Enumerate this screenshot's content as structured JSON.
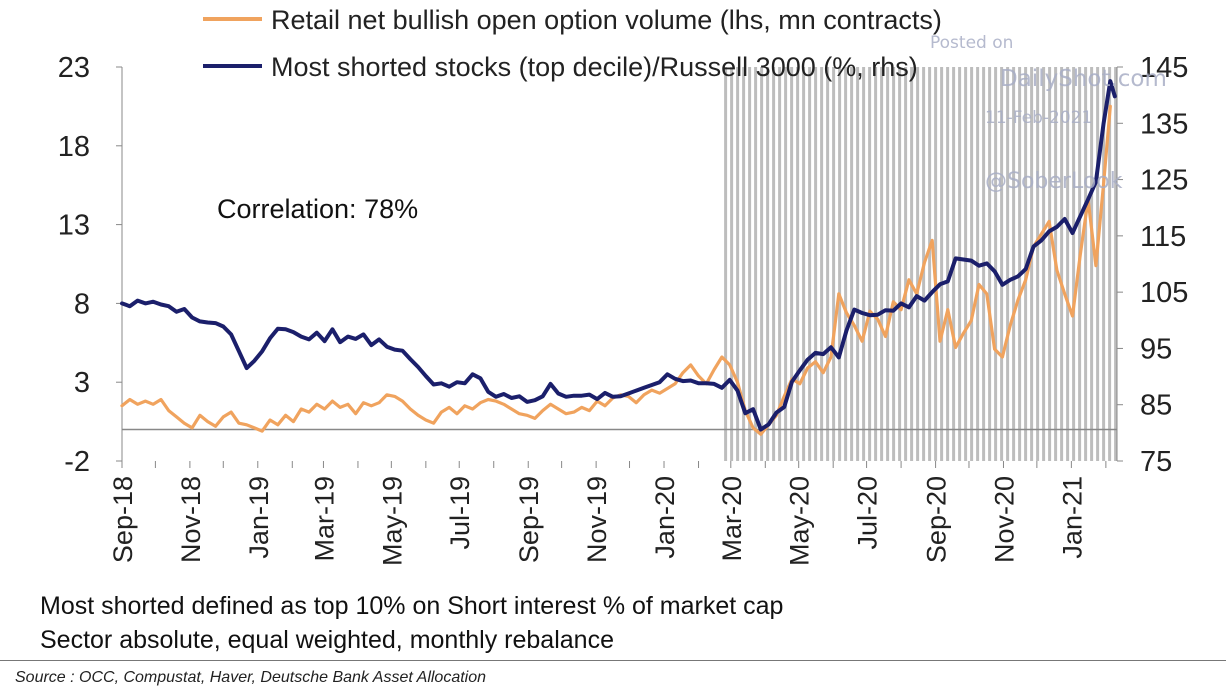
{
  "chart_data": {
    "type": "line",
    "annotation": "Correlation: 78%",
    "recession_shading": {
      "from": "2020-02-24",
      "to": "2021-02-11",
      "color": "#bdbdbd"
    },
    "x_tick_labels": [
      "Sep-18",
      "Nov-18",
      "Jan-19",
      "Mar-19",
      "May-19",
      "Jul-19",
      "Sep-19",
      "Nov-19",
      "Jan-20",
      "Mar-20",
      "May-20",
      "Jul-20",
      "Sep-20",
      "Nov-20",
      "Jan-21"
    ],
    "x_range": [
      "2018-09-01",
      "2021-02-11"
    ],
    "y_left": {
      "label": "lhs",
      "ticks": [
        "23",
        "18",
        "13",
        "8",
        "3",
        "-2"
      ],
      "range": [
        -2,
        23
      ]
    },
    "y_right": {
      "label": "rhs",
      "ticks": [
        "145",
        "135",
        "125",
        "115",
        "105",
        "95",
        "85",
        "75"
      ],
      "range": [
        75,
        145
      ]
    },
    "series": [
      {
        "name": "Retail net bullish open option volume (lhs, mn contracts)",
        "axis": "left",
        "color": "#f0a35e",
        "points": [
          [
            "2018-09-01",
            1.5
          ],
          [
            "2018-09-08",
            1.9
          ],
          [
            "2018-09-15",
            1.6
          ],
          [
            "2018-09-22",
            1.8
          ],
          [
            "2018-09-29",
            1.6
          ],
          [
            "2018-10-06",
            1.9
          ],
          [
            "2018-10-13",
            1.2
          ],
          [
            "2018-10-20",
            0.8
          ],
          [
            "2018-10-27",
            0.4
          ],
          [
            "2018-11-03",
            0.1
          ],
          [
            "2018-11-10",
            0.9
          ],
          [
            "2018-11-17",
            0.5
          ],
          [
            "2018-11-24",
            0.2
          ],
          [
            "2018-12-01",
            0.8
          ],
          [
            "2018-12-08",
            1.1
          ],
          [
            "2018-12-15",
            0.4
          ],
          [
            "2018-12-22",
            0.3
          ],
          [
            "2018-12-29",
            0.1
          ],
          [
            "2019-01-05",
            -0.1
          ],
          [
            "2019-01-12",
            0.6
          ],
          [
            "2019-01-19",
            0.3
          ],
          [
            "2019-01-26",
            0.9
          ],
          [
            "2019-02-02",
            0.5
          ],
          [
            "2019-02-09",
            1.3
          ],
          [
            "2019-02-16",
            1.1
          ],
          [
            "2019-02-23",
            1.6
          ],
          [
            "2019-03-02",
            1.3
          ],
          [
            "2019-03-09",
            1.8
          ],
          [
            "2019-03-16",
            1.4
          ],
          [
            "2019-03-23",
            1.6
          ],
          [
            "2019-03-30",
            1.0
          ],
          [
            "2019-04-06",
            1.7
          ],
          [
            "2019-04-13",
            1.5
          ],
          [
            "2019-04-20",
            1.7
          ],
          [
            "2019-04-27",
            2.2
          ],
          [
            "2019-05-04",
            2.1
          ],
          [
            "2019-05-11",
            1.8
          ],
          [
            "2019-05-18",
            1.3
          ],
          [
            "2019-05-25",
            0.9
          ],
          [
            "2019-06-01",
            0.6
          ],
          [
            "2019-06-08",
            0.4
          ],
          [
            "2019-06-15",
            1.1
          ],
          [
            "2019-06-22",
            1.4
          ],
          [
            "2019-06-29",
            1.0
          ],
          [
            "2019-07-06",
            1.5
          ],
          [
            "2019-07-13",
            1.3
          ],
          [
            "2019-07-20",
            1.7
          ],
          [
            "2019-07-27",
            1.9
          ],
          [
            "2019-08-03",
            1.8
          ],
          [
            "2019-08-10",
            1.6
          ],
          [
            "2019-08-17",
            1.3
          ],
          [
            "2019-08-24",
            1.0
          ],
          [
            "2019-08-31",
            0.9
          ],
          [
            "2019-09-07",
            0.7
          ],
          [
            "2019-09-14",
            1.2
          ],
          [
            "2019-09-21",
            1.6
          ],
          [
            "2019-09-28",
            1.3
          ],
          [
            "2019-10-05",
            1.0
          ],
          [
            "2019-10-12",
            1.1
          ],
          [
            "2019-10-19",
            1.4
          ],
          [
            "2019-10-26",
            1.2
          ],
          [
            "2019-11-02",
            1.8
          ],
          [
            "2019-11-09",
            1.5
          ],
          [
            "2019-11-16",
            2.0
          ],
          [
            "2019-11-23",
            2.2
          ],
          [
            "2019-11-30",
            2.1
          ],
          [
            "2019-12-07",
            1.7
          ],
          [
            "2019-12-14",
            2.2
          ],
          [
            "2019-12-21",
            2.5
          ],
          [
            "2019-12-28",
            2.3
          ],
          [
            "2020-01-04",
            2.6
          ],
          [
            "2020-01-11",
            2.9
          ],
          [
            "2020-01-18",
            3.6
          ],
          [
            "2020-01-25",
            4.1
          ],
          [
            "2020-02-01",
            3.4
          ],
          [
            "2020-02-08",
            2.9
          ],
          [
            "2020-02-15",
            3.8
          ],
          [
            "2020-02-22",
            4.6
          ],
          [
            "2020-02-29",
            4.1
          ],
          [
            "2020-03-07",
            3.0
          ],
          [
            "2020-03-14",
            1.2
          ],
          [
            "2020-03-21",
            0.1
          ],
          [
            "2020-03-28",
            -0.3
          ],
          [
            "2020-04-04",
            0.3
          ],
          [
            "2020-04-11",
            0.9
          ],
          [
            "2020-04-18",
            2.1
          ],
          [
            "2020-04-25",
            3.2
          ],
          [
            "2020-05-02",
            2.9
          ],
          [
            "2020-05-09",
            3.9
          ],
          [
            "2020-05-16",
            4.3
          ],
          [
            "2020-05-23",
            3.6
          ],
          [
            "2020-05-30",
            4.6
          ],
          [
            "2020-06-06",
            8.6
          ],
          [
            "2020-06-13",
            7.4
          ],
          [
            "2020-06-20",
            6.6
          ],
          [
            "2020-06-27",
            5.6
          ],
          [
            "2020-07-04",
            7.5
          ],
          [
            "2020-07-11",
            7.0
          ],
          [
            "2020-07-18",
            5.9
          ],
          [
            "2020-07-25",
            8.1
          ],
          [
            "2020-08-01",
            7.6
          ],
          [
            "2020-08-08",
            9.5
          ],
          [
            "2020-08-15",
            8.6
          ],
          [
            "2020-08-22",
            10.6
          ],
          [
            "2020-08-29",
            12.0
          ],
          [
            "2020-09-05",
            5.6
          ],
          [
            "2020-09-12",
            7.6
          ],
          [
            "2020-09-19",
            5.2
          ],
          [
            "2020-09-26",
            6.1
          ],
          [
            "2020-10-03",
            6.9
          ],
          [
            "2020-10-10",
            9.2
          ],
          [
            "2020-10-17",
            8.6
          ],
          [
            "2020-10-24",
            5.1
          ],
          [
            "2020-10-31",
            4.6
          ],
          [
            "2020-11-07",
            6.6
          ],
          [
            "2020-11-14",
            8.2
          ],
          [
            "2020-11-21",
            9.5
          ],
          [
            "2020-11-28",
            11.6
          ],
          [
            "2020-12-05",
            12.4
          ],
          [
            "2020-12-12",
            13.2
          ],
          [
            "2020-12-19",
            10.1
          ],
          [
            "2020-12-26",
            8.6
          ],
          [
            "2021-01-02",
            7.2
          ],
          [
            "2021-01-09",
            11.1
          ],
          [
            "2021-01-16",
            14.6
          ],
          [
            "2021-01-23",
            10.4
          ],
          [
            "2021-01-30",
            15.6
          ],
          [
            "2021-02-05",
            20.5
          ]
        ]
      },
      {
        "name": "Most shorted stocks (top decile)/Russell 3000 (%, rhs)",
        "axis": "right",
        "color": "#1b1f6b",
        "points": [
          [
            "2018-09-01",
            103
          ],
          [
            "2018-09-08",
            102.5
          ],
          [
            "2018-09-15",
            103.5
          ],
          [
            "2018-09-22",
            103
          ],
          [
            "2018-09-29",
            103.3
          ],
          [
            "2018-10-06",
            102.8
          ],
          [
            "2018-10-13",
            102.5
          ],
          [
            "2018-10-20",
            101.5
          ],
          [
            "2018-10-27",
            102
          ],
          [
            "2018-11-03",
            100.5
          ],
          [
            "2018-11-10",
            99.8
          ],
          [
            "2018-11-17",
            99.6
          ],
          [
            "2018-11-24",
            99.5
          ],
          [
            "2018-12-01",
            98.9
          ],
          [
            "2018-12-08",
            97.5
          ],
          [
            "2018-12-15",
            94.5
          ],
          [
            "2018-12-22",
            91.5
          ],
          [
            "2018-12-29",
            92.8
          ],
          [
            "2019-01-05",
            94.5
          ],
          [
            "2019-01-12",
            96.8
          ],
          [
            "2019-01-19",
            98.5
          ],
          [
            "2019-01-26",
            98.4
          ],
          [
            "2019-02-02",
            97.9
          ],
          [
            "2019-02-09",
            97.1
          ],
          [
            "2019-02-16",
            96.6
          ],
          [
            "2019-02-23",
            97.8
          ],
          [
            "2019-03-02",
            96.3
          ],
          [
            "2019-03-09",
            98.4
          ],
          [
            "2019-03-16",
            96.1
          ],
          [
            "2019-03-23",
            97.1
          ],
          [
            "2019-03-30",
            96.7
          ],
          [
            "2019-04-06",
            97.5
          ],
          [
            "2019-04-13",
            95.6
          ],
          [
            "2019-04-20",
            96.6
          ],
          [
            "2019-04-27",
            95.3
          ],
          [
            "2019-05-04",
            94.8
          ],
          [
            "2019-05-11",
            94.6
          ],
          [
            "2019-05-18",
            93.1
          ],
          [
            "2019-05-25",
            91.7
          ],
          [
            "2019-06-01",
            90.1
          ],
          [
            "2019-06-08",
            88.6
          ],
          [
            "2019-06-15",
            88.8
          ],
          [
            "2019-06-22",
            88.2
          ],
          [
            "2019-06-29",
            89.0
          ],
          [
            "2019-07-06",
            88.8
          ],
          [
            "2019-07-13",
            90.4
          ],
          [
            "2019-07-20",
            89.7
          ],
          [
            "2019-07-27",
            87.3
          ],
          [
            "2019-08-03",
            86.4
          ],
          [
            "2019-08-10",
            86.9
          ],
          [
            "2019-08-17",
            86.2
          ],
          [
            "2019-08-24",
            86.5
          ],
          [
            "2019-08-31",
            85.5
          ],
          [
            "2019-09-07",
            85.8
          ],
          [
            "2019-09-14",
            86.5
          ],
          [
            "2019-09-21",
            88.7
          ],
          [
            "2019-09-28",
            87.0
          ],
          [
            "2019-10-05",
            86.4
          ],
          [
            "2019-10-12",
            86.6
          ],
          [
            "2019-10-19",
            86.6
          ],
          [
            "2019-10-26",
            86.8
          ],
          [
            "2019-11-02",
            86.0
          ],
          [
            "2019-11-09",
            87.1
          ],
          [
            "2019-11-16",
            86.4
          ],
          [
            "2019-11-23",
            86.5
          ],
          [
            "2019-11-30",
            87.0
          ],
          [
            "2019-12-07",
            87.5
          ],
          [
            "2019-12-14",
            88.0
          ],
          [
            "2019-12-21",
            88.5
          ],
          [
            "2019-12-28",
            89.0
          ],
          [
            "2020-01-04",
            90.4
          ],
          [
            "2020-01-11",
            89.6
          ],
          [
            "2020-01-18",
            89.2
          ],
          [
            "2020-01-25",
            89.3
          ],
          [
            "2020-02-01",
            88.8
          ],
          [
            "2020-02-08",
            88.8
          ],
          [
            "2020-02-15",
            88.7
          ],
          [
            "2020-02-22",
            88.0
          ],
          [
            "2020-02-29",
            89.4
          ],
          [
            "2020-03-07",
            87.5
          ],
          [
            "2020-03-14",
            83.5
          ],
          [
            "2020-03-21",
            84.2
          ],
          [
            "2020-03-28",
            80.6
          ],
          [
            "2020-04-04",
            81.5
          ],
          [
            "2020-04-11",
            83.6
          ],
          [
            "2020-04-18",
            84.6
          ],
          [
            "2020-04-25",
            89.1
          ],
          [
            "2020-05-02",
            91.1
          ],
          [
            "2020-05-09",
            93.0
          ],
          [
            "2020-05-16",
            94.2
          ],
          [
            "2020-05-23",
            94.0
          ],
          [
            "2020-05-30",
            95.2
          ],
          [
            "2020-06-06",
            93.4
          ],
          [
            "2020-06-13",
            98.2
          ],
          [
            "2020-06-20",
            101.9
          ],
          [
            "2020-06-27",
            101.3
          ],
          [
            "2020-07-04",
            100.9
          ],
          [
            "2020-07-11",
            101.0
          ],
          [
            "2020-07-18",
            101.8
          ],
          [
            "2020-07-25",
            101.7
          ],
          [
            "2020-08-01",
            103.0
          ],
          [
            "2020-08-08",
            102.3
          ],
          [
            "2020-08-15",
            104.3
          ],
          [
            "2020-08-22",
            103.5
          ],
          [
            "2020-08-29",
            105.0
          ],
          [
            "2020-09-05",
            106.4
          ],
          [
            "2020-09-12",
            106.9
          ],
          [
            "2020-09-19",
            111.0
          ],
          [
            "2020-09-26",
            110.8
          ],
          [
            "2020-10-03",
            110.6
          ],
          [
            "2020-10-10",
            109.7
          ],
          [
            "2020-10-17",
            110.1
          ],
          [
            "2020-10-24",
            108.7
          ],
          [
            "2020-10-31",
            106.3
          ],
          [
            "2020-11-07",
            107.2
          ],
          [
            "2020-11-14",
            107.8
          ],
          [
            "2020-11-21",
            109.1
          ],
          [
            "2020-11-28",
            113.1
          ],
          [
            "2020-12-05",
            114.2
          ],
          [
            "2020-12-12",
            115.8
          ],
          [
            "2020-12-19",
            116.6
          ],
          [
            "2020-12-26",
            118.0
          ],
          [
            "2021-01-02",
            115.5
          ],
          [
            "2021-01-09",
            118.5
          ],
          [
            "2021-01-16",
            121.5
          ],
          [
            "2021-01-23",
            124.6
          ],
          [
            "2021-01-30",
            135.0
          ],
          [
            "2021-02-05",
            142.5
          ],
          [
            "2021-02-09",
            139.8
          ]
        ]
      }
    ]
  },
  "notes": [
    "Most shorted defined as top 10% on Short interest % of market cap",
    "Sector absolute, equal weighted, monthly rebalance"
  ],
  "source": "Source : OCC, Compustat, Haver, Deutsche Bank Asset Allocation",
  "watermark": {
    "posted_on": "Posted on",
    "site": "DailyShot.com",
    "date": "11-Feb-2021",
    "handle": "@SoberLook"
  }
}
